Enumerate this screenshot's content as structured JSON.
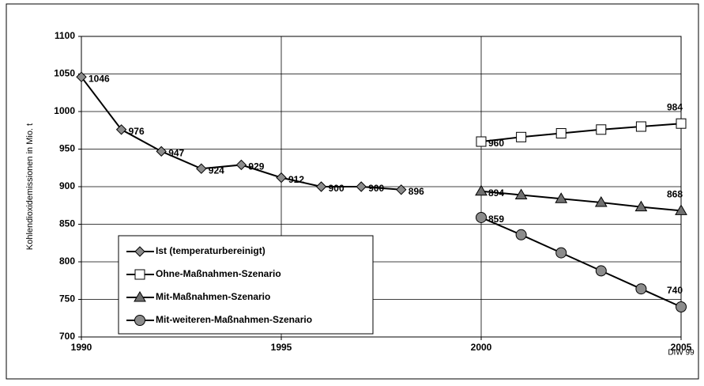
{
  "chart_data": {
    "type": "line",
    "y_label": "Kohlendioxidemissionen in Mio. t",
    "source": "DIW 99",
    "x": [
      1990,
      1991,
      1992,
      1993,
      1994,
      1995,
      1996,
      1997,
      1998,
      1999,
      2000,
      2001,
      2002,
      2003,
      2004,
      2005
    ],
    "series": [
      {
        "name": "Ist (temperaturbereinigt)",
        "color": "#000000",
        "marker": "diamond",
        "marker_fill": "#8c8c8c",
        "data_labels": "all",
        "values": [
          1046,
          976,
          947,
          924,
          929,
          912,
          900,
          900,
          896,
          null,
          null,
          null,
          null,
          null,
          null,
          null
        ]
      },
      {
        "name": "Ohne-Maßnahmen-Szenario",
        "color": "#000000",
        "marker": "square",
        "marker_fill": "#ffffff",
        "data_labels": "ends",
        "values": [
          null,
          null,
          null,
          null,
          null,
          null,
          null,
          null,
          null,
          null,
          960,
          966,
          971,
          976,
          980,
          984
        ]
      },
      {
        "name": "Mit-Maßnahmen-Szenario",
        "color": "#000000",
        "marker": "triangle",
        "marker_fill": "#707070",
        "data_labels": "ends",
        "values": [
          null,
          null,
          null,
          null,
          null,
          null,
          null,
          null,
          null,
          null,
          894,
          889,
          884,
          879,
          873,
          868
        ]
      },
      {
        "name": "Mit-weiteren-Maßnahmen-Szenario",
        "color": "#000000",
        "marker": "circle",
        "marker_fill": "#8c8c8c",
        "data_labels": "ends",
        "values": [
          null,
          null,
          null,
          null,
          null,
          null,
          null,
          null,
          null,
          null,
          859,
          836,
          812,
          788,
          764,
          740
        ]
      }
    ],
    "xlim": [
      1990,
      2005
    ],
    "xticks": [
      1990,
      1995,
      2000,
      2005
    ],
    "ylim": [
      700,
      1100
    ],
    "yticks": [
      700,
      750,
      800,
      850,
      900,
      950,
      1000,
      1050,
      1100
    ],
    "grid": true,
    "legend": "lower left"
  }
}
